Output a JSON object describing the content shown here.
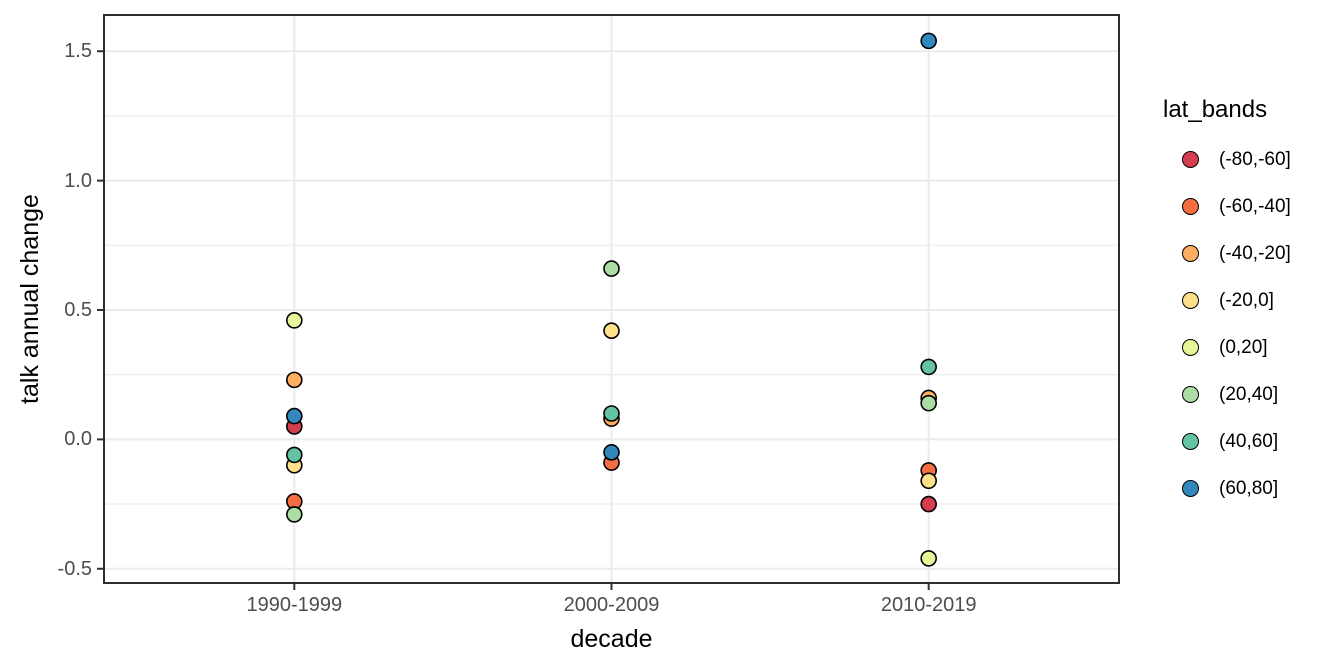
{
  "chart_data": {
    "type": "scatter",
    "title": "",
    "xlabel": "decade",
    "ylabel": "talk annual change",
    "categories": [
      "1990-1999",
      "2000-2009",
      "2010-2019"
    ],
    "ylim": [
      -0.555,
      1.64
    ],
    "y_ticks": [
      {
        "value": 1.5,
        "label": "1.5"
      },
      {
        "value": 1.0,
        "label": "1.0"
      },
      {
        "value": 0.5,
        "label": "0.5"
      },
      {
        "value": 0.0,
        "label": "0.0"
      },
      {
        "value": -0.5,
        "label": "-0.5"
      }
    ],
    "y_minor_ticks": [
      1.25,
      0.75,
      0.25,
      -0.25
    ],
    "grid": true,
    "legend": {
      "title": "lat_bands",
      "position": "right"
    },
    "series": [
      {
        "name": "(-80,-60]",
        "color": "#d53e4f",
        "values": [
          0.05,
          null,
          -0.25
        ]
      },
      {
        "name": "(-60,-40]",
        "color": "#f46d43",
        "values": [
          -0.24,
          -0.09,
          -0.12
        ]
      },
      {
        "name": "(-40,-20]",
        "color": "#fdae61",
        "values": [
          0.23,
          0.08,
          0.16
        ]
      },
      {
        "name": "(-20,0]",
        "color": "#fee08b",
        "values": [
          -0.1,
          0.42,
          -0.16
        ]
      },
      {
        "name": "(0,20]",
        "color": "#e6f598",
        "values": [
          0.46,
          null,
          -0.46
        ]
      },
      {
        "name": "(20,40]",
        "color": "#abdda4",
        "values": [
          -0.29,
          0.66,
          0.14
        ]
      },
      {
        "name": "(40,60]",
        "color": "#66c2a5",
        "values": [
          -0.06,
          0.1,
          0.28
        ]
      },
      {
        "name": "(60,80]",
        "color": "#3288bd",
        "values": [
          0.09,
          -0.05,
          1.54
        ]
      }
    ]
  },
  "colors": {
    "background": "#ffffff",
    "panel_background": "#ffffff",
    "grid_major": "#ebebeb",
    "grid_minor": "#efefef",
    "panel_border": "#2e2e2e",
    "tick_mark": "#333333",
    "tick_label": "#4d4d4d",
    "point_stroke": "#000000"
  }
}
